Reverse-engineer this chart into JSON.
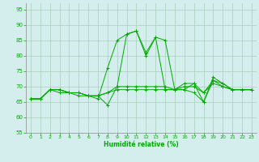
{
  "title": "",
  "xlabel": "Humidité relative (%)",
  "ylabel": "",
  "xlim": [
    -0.5,
    23.5
  ],
  "ylim": [
    55,
    97
  ],
  "yticks": [
    55,
    60,
    65,
    70,
    75,
    80,
    85,
    90,
    95
  ],
  "xticks": [
    0,
    1,
    2,
    3,
    4,
    5,
    6,
    7,
    8,
    9,
    10,
    11,
    12,
    13,
    14,
    15,
    16,
    17,
    18,
    19,
    20,
    21,
    22,
    23
  ],
  "bg_color": "#d4eeee",
  "grid_color": "#aaccbb",
  "line_color": "#00aa00",
  "series": [
    [
      66,
      66,
      69,
      69,
      68,
      68,
      67,
      67,
      64,
      70,
      87,
      88,
      81,
      86,
      85,
      69,
      69,
      68,
      65,
      73,
      71,
      69,
      69,
      69
    ],
    [
      66,
      66,
      69,
      69,
      68,
      68,
      67,
      66,
      76,
      85,
      87,
      88,
      80,
      86,
      69,
      69,
      69,
      71,
      65,
      72,
      70,
      69,
      69,
      69
    ],
    [
      66,
      66,
      69,
      69,
      68,
      68,
      67,
      67,
      68,
      70,
      70,
      70,
      70,
      70,
      70,
      69,
      71,
      71,
      68,
      72,
      71,
      69,
      69,
      69
    ],
    [
      66,
      66,
      69,
      68,
      68,
      67,
      67,
      67,
      68,
      69,
      69,
      69,
      69,
      69,
      69,
      69,
      70,
      70,
      68,
      71,
      70,
      69,
      69,
      69
    ]
  ]
}
